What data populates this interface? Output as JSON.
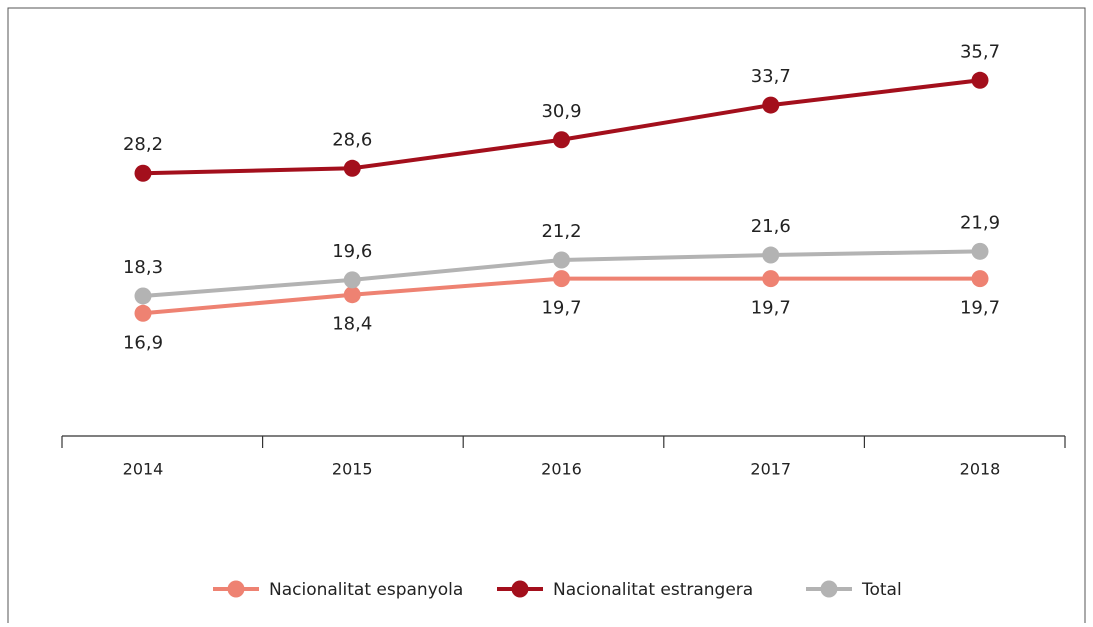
{
  "chart_data": {
    "type": "line",
    "categories": [
      "2014",
      "2015",
      "2016",
      "2017",
      "2018"
    ],
    "series": [
      {
        "name": "Nacionalitat espanyola",
        "color": "#ee8272",
        "values": [
          16.9,
          18.4,
          19.7,
          19.7,
          19.7
        ],
        "value_labels": [
          "16,9",
          "18,4",
          "19,7",
          "19,7",
          "19,7"
        ]
      },
      {
        "name": "Nacionalitat estrangera",
        "color": "#a30f1c",
        "values": [
          28.2,
          28.6,
          30.9,
          33.7,
          35.7
        ],
        "value_labels": [
          "28,2",
          "28,6",
          "30,9",
          "33,7",
          "35,7"
        ]
      },
      {
        "name": "Total",
        "color": "#b3b3b3",
        "values": [
          18.3,
          19.6,
          21.2,
          21.6,
          21.9
        ],
        "value_labels": [
          "18,3",
          "19,6",
          "21,2",
          "21,6",
          "21,9"
        ]
      }
    ],
    "ylim": [
      7,
      40
    ]
  }
}
